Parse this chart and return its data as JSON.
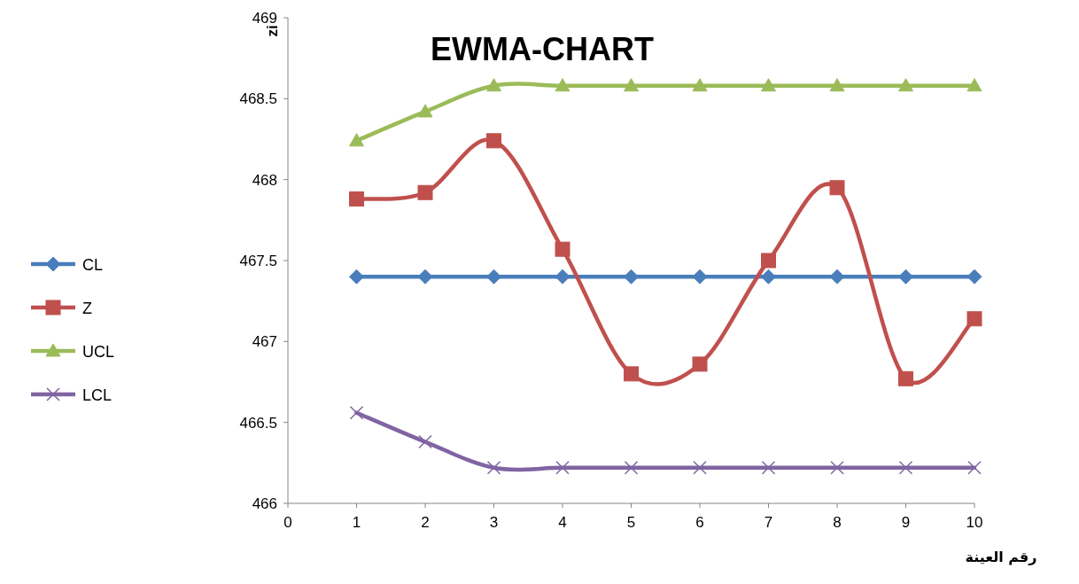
{
  "chart_data": {
    "type": "line",
    "title": "EWMA-CHART",
    "xlabel": "رقم العينة",
    "ylabel": "zi",
    "x": [
      1,
      2,
      3,
      4,
      5,
      6,
      7,
      8,
      9,
      10
    ],
    "series": [
      {
        "name": "CL",
        "color": "#4a7ebb",
        "marker": "diamond",
        "values": [
          467.4,
          467.4,
          467.4,
          467.4,
          467.4,
          467.4,
          467.4,
          467.4,
          467.4,
          467.4
        ]
      },
      {
        "name": "Z",
        "color": "#c0504d",
        "marker": "square",
        "values": [
          467.88,
          467.92,
          468.24,
          467.57,
          466.8,
          466.86,
          467.5,
          467.95,
          466.77,
          467.14
        ]
      },
      {
        "name": "UCL",
        "color": "#9bbb59",
        "marker": "triangle",
        "values": [
          468.24,
          468.42,
          468.58,
          468.58,
          468.58,
          468.58,
          468.58,
          468.58,
          468.58,
          468.58
        ]
      },
      {
        "name": "LCL",
        "color": "#8064a2",
        "marker": "cross",
        "values": [
          466.56,
          466.38,
          466.22,
          466.22,
          466.22,
          466.22,
          466.22,
          466.22,
          466.22,
          466.22
        ]
      }
    ],
    "xlim": [
      0,
      10
    ],
    "xticks": [
      0,
      1,
      2,
      3,
      4,
      5,
      6,
      7,
      8,
      9,
      10
    ],
    "ylim": [
      466,
      469
    ],
    "yticks": [
      466,
      466.5,
      467,
      467.5,
      468,
      468.5,
      469
    ],
    "legend": "left",
    "grid": false,
    "line_style": "solid"
  }
}
